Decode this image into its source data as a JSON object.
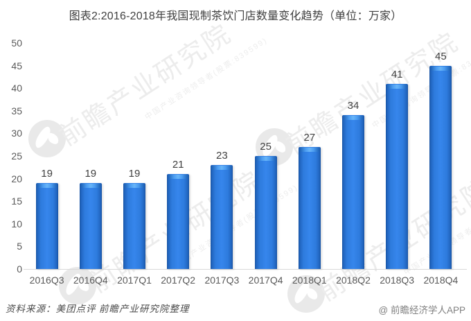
{
  "title": "图表2:2016-2018年我国现制茶饮门店数量变化趋势（单位：万家）",
  "chart_data": {
    "type": "bar",
    "title": "图表2:2016-2018年我国现制茶饮门店数量变化趋势",
    "unit": "万家",
    "categories": [
      "2016Q3",
      "2016Q4",
      "2017Q1",
      "2017Q2",
      "2017Q3",
      "2017Q4",
      "2018Q1",
      "2018Q2",
      "2018Q3",
      "2018Q4"
    ],
    "values": [
      19,
      19,
      19,
      21,
      23,
      25,
      27,
      34,
      41,
      45
    ],
    "xlabel": "",
    "ylabel": "",
    "ylim": [
      0,
      50
    ],
    "ytick_step": 5,
    "yticks": [
      "0",
      "5",
      "10",
      "15",
      "20",
      "25",
      "30",
      "35",
      "40",
      "45",
      "50"
    ],
    "grid": false,
    "legend": false,
    "bar_color": "#2e7bdd"
  },
  "watermark": {
    "logo": "qianzhan-circle-logo",
    "text": "前瞻产业研究院",
    "subtext": "中国产业咨询领导者(股票:839599)"
  },
  "footer": {
    "source": "资料来源：美团点评 前瞻产业研究院整理",
    "credit": "@ 前瞻经济学人APP"
  },
  "colors": {
    "bar_main": "#2e7bdd",
    "bar_edge": "#16509e",
    "bar_cap": "#68b5f8",
    "axis_label": "#595959",
    "value_label": "#404040",
    "title_text": "#3f3f3f",
    "watermark": "#ececec",
    "baseline": "#d9d9d9",
    "source_text": "#4a4a4a",
    "credit_text": "#808080"
  }
}
